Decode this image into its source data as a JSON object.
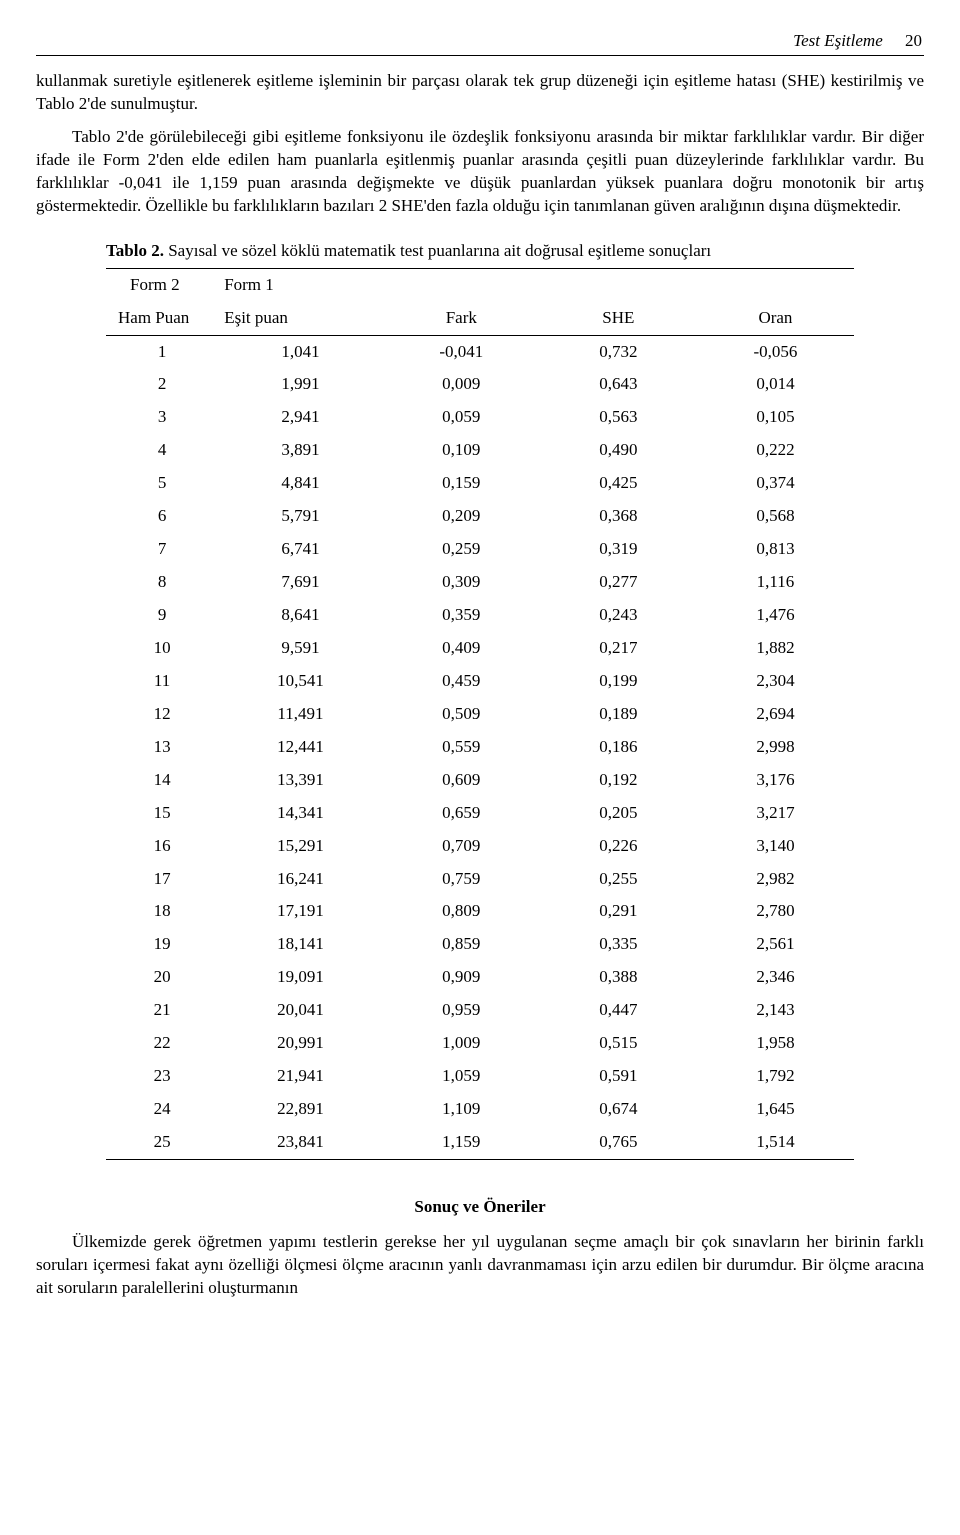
{
  "header": {
    "running_title": "Test Eşitleme",
    "page_number": "20"
  },
  "paragraphs": {
    "p1": "kullanmak suretiyle eşitlenerek eşitleme işleminin bir parçası olarak tek grup düzeneği için eşitleme hatası (SHE) kestirilmiş ve Tablo 2'de sunulmuştur.",
    "p2": "Tablo 2'de görülebileceği gibi eşitleme fonksiyonu ile özdeşlik fonksiyonu arasında bir miktar farklılıklar vardır. Bir diğer ifade ile Form 2'den elde edilen ham puanlarla eşitlenmiş puanlar arasında çeşitli puan düzeylerinde farklılıklar vardır. Bu farklılıklar  -0,041 ile 1,159 puan arasında değişmekte ve düşük puanlardan yüksek puanlara doğru monotonik bir artış göstermektedir. Özellikle bu farklılıkların bazıları 2 SHE'den fazla olduğu için tanımlanan güven aralığının dışına düşmektedir."
  },
  "table": {
    "caption_label": "Tablo 2.",
    "caption_text": " Sayısal ve sözel köklü matematik test puanlarına ait doğrusal eşitleme sonuçları",
    "head1": {
      "col1": "Form 2",
      "col2": "Form 1"
    },
    "head2": {
      "col1": "Ham  Puan",
      "col2": "Eşit puan",
      "col3": "Fark",
      "col4": "SHE",
      "col5": "Oran"
    },
    "rows": [
      [
        "1",
        "1,041",
        "-0,041",
        "0,732",
        "-0,056"
      ],
      [
        "2",
        "1,991",
        "0,009",
        "0,643",
        "0,014"
      ],
      [
        "3",
        "2,941",
        "0,059",
        "0,563",
        "0,105"
      ],
      [
        "4",
        "3,891",
        "0,109",
        "0,490",
        "0,222"
      ],
      [
        "5",
        "4,841",
        "0,159",
        "0,425",
        "0,374"
      ],
      [
        "6",
        "5,791",
        "0,209",
        "0,368",
        "0,568"
      ],
      [
        "7",
        "6,741",
        "0,259",
        "0,319",
        "0,813"
      ],
      [
        "8",
        "7,691",
        "0,309",
        "0,277",
        "1,116"
      ],
      [
        "9",
        "8,641",
        "0,359",
        "0,243",
        "1,476"
      ],
      [
        "10",
        "9,591",
        "0,409",
        "0,217",
        "1,882"
      ],
      [
        "11",
        "10,541",
        "0,459",
        "0,199",
        "2,304"
      ],
      [
        "12",
        "11,491",
        "0,509",
        "0,189",
        "2,694"
      ],
      [
        "13",
        "12,441",
        "0,559",
        "0,186",
        "2,998"
      ],
      [
        "14",
        "13,391",
        "0,609",
        "0,192",
        "3,176"
      ],
      [
        "15",
        "14,341",
        "0,659",
        "0,205",
        "3,217"
      ],
      [
        "16",
        "15,291",
        "0,709",
        "0,226",
        "3,140"
      ],
      [
        "17",
        "16,241",
        "0,759",
        "0,255",
        "2,982"
      ],
      [
        "18",
        "17,191",
        "0,809",
        "0,291",
        "2,780"
      ],
      [
        "19",
        "18,141",
        "0,859",
        "0,335",
        "2,561"
      ],
      [
        "20",
        "19,091",
        "0,909",
        "0,388",
        "2,346"
      ],
      [
        "21",
        "20,041",
        "0,959",
        "0,447",
        "2,143"
      ],
      [
        "22",
        "20,991",
        "1,009",
        "0,515",
        "1,958"
      ],
      [
        "23",
        "21,941",
        "1,059",
        "0,591",
        "1,792"
      ],
      [
        "24",
        "22,891",
        "1,109",
        "0,674",
        "1,645"
      ],
      [
        "25",
        "23,841",
        "1,159",
        "0,765",
        "1,514"
      ]
    ]
  },
  "section_head": "Sonuç ve Öneriler",
  "p3": "Ülkemizde gerek öğretmen yapımı testlerin gerekse her yıl uygulanan seçme amaçlı bir çok sınavların her birinin farklı soruları içermesi fakat aynı özelliği ölçmesi ölçme aracının yanlı davranmaması için arzu edilen bir durumdur. Bir ölçme aracına ait soruların paralellerini oluşturmanın"
}
